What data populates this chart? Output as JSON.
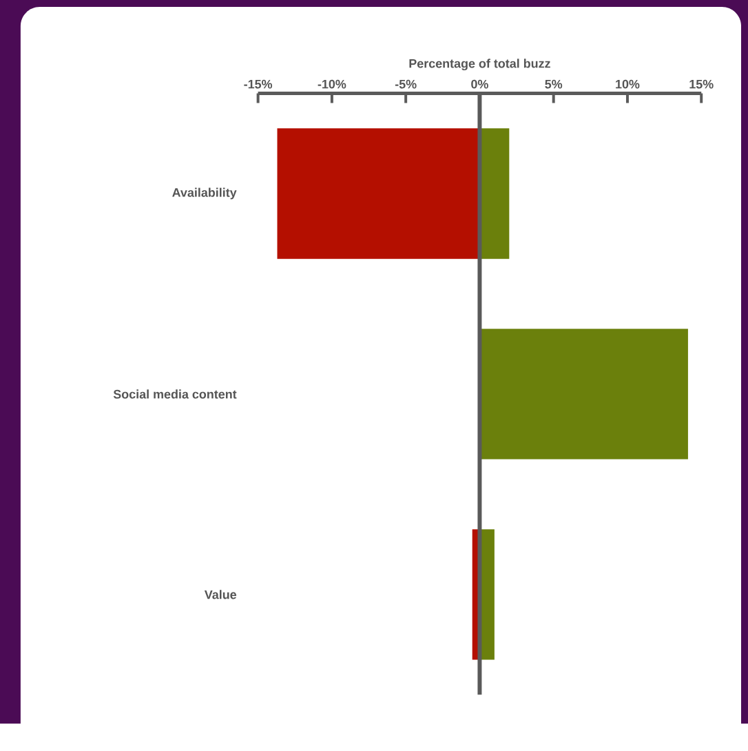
{
  "chart_data": {
    "type": "bar",
    "orientation": "horizontal",
    "stacked": true,
    "xlabel": "Percentage of total buzz",
    "categories": [
      "Availability",
      "Social media content",
      "Value"
    ],
    "series": [
      {
        "color": "#b40f00",
        "values": [
          -13.7,
          null,
          -0.5
        ]
      },
      {
        "color": "#6b800c",
        "values": [
          2,
          14.1,
          1
        ]
      }
    ],
    "xlim": [
      -15,
      15
    ],
    "xticks": [
      {
        "value": -15,
        "label": "-15%"
      },
      {
        "value": -10,
        "label": "-10%"
      },
      {
        "value": -5,
        "label": "-5%"
      },
      {
        "value": 0,
        "label": "0%"
      },
      {
        "value": 5,
        "label": "5%"
      },
      {
        "value": 10,
        "label": "10%"
      },
      {
        "value": 15,
        "label": "15%"
      }
    ]
  }
}
